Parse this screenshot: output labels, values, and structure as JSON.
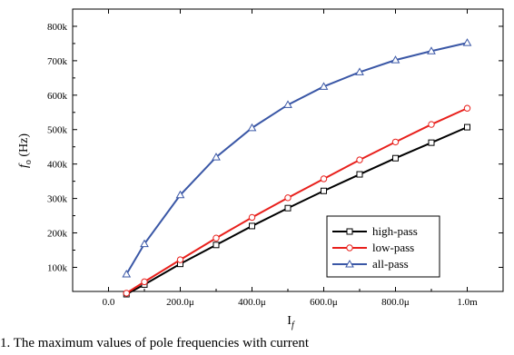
{
  "chart_data": {
    "type": "line",
    "xlabel": "I",
    "xlabel_sub": "f",
    "ylabel": "f",
    "ylabel_sub": "o",
    "ylabel_unit": " (Hz)",
    "xlim": [
      -0.0001,
      0.0011
    ],
    "ylim": [
      30000,
      850000
    ],
    "x_ticks": [
      0,
      0.0002,
      0.0004,
      0.0006,
      0.0008,
      0.001
    ],
    "x_tick_labels": [
      "0.0",
      "200.0μ",
      "400.0μ",
      "600.0μ",
      "800.0μ",
      "1.0m"
    ],
    "y_ticks": [
      100000,
      200000,
      300000,
      400000,
      500000,
      600000,
      700000,
      800000
    ],
    "y_tick_labels": [
      "100k",
      "200k",
      "300k",
      "400k",
      "500k",
      "600k",
      "700k",
      "800k"
    ],
    "grid": false,
    "legend_position": "bottom-right",
    "x": [
      5e-05,
      0.0001,
      0.0002,
      0.0003,
      0.0004,
      0.0005,
      0.0006,
      0.0007,
      0.0008,
      0.0009,
      0.001
    ],
    "series": [
      {
        "name": "high-pass",
        "color": "#000000",
        "marker": "square",
        "values": [
          22000,
          50000,
          110000,
          165000,
          220000,
          272000,
          322000,
          370000,
          417000,
          462000,
          507000
        ]
      },
      {
        "name": "low-pass",
        "color": "#e8201c",
        "marker": "circle",
        "values": [
          25000,
          58000,
          122000,
          185000,
          245000,
          302000,
          357000,
          412000,
          464000,
          515000,
          562000
        ]
      },
      {
        "name": "all-pass",
        "color": "#3a57a6",
        "marker": "triangle",
        "values": [
          80000,
          168000,
          310000,
          420000,
          505000,
          572000,
          625000,
          667000,
          702000,
          728000,
          752000
        ]
      }
    ]
  },
  "caption": "1. The maximum values of pole frequencies with current"
}
